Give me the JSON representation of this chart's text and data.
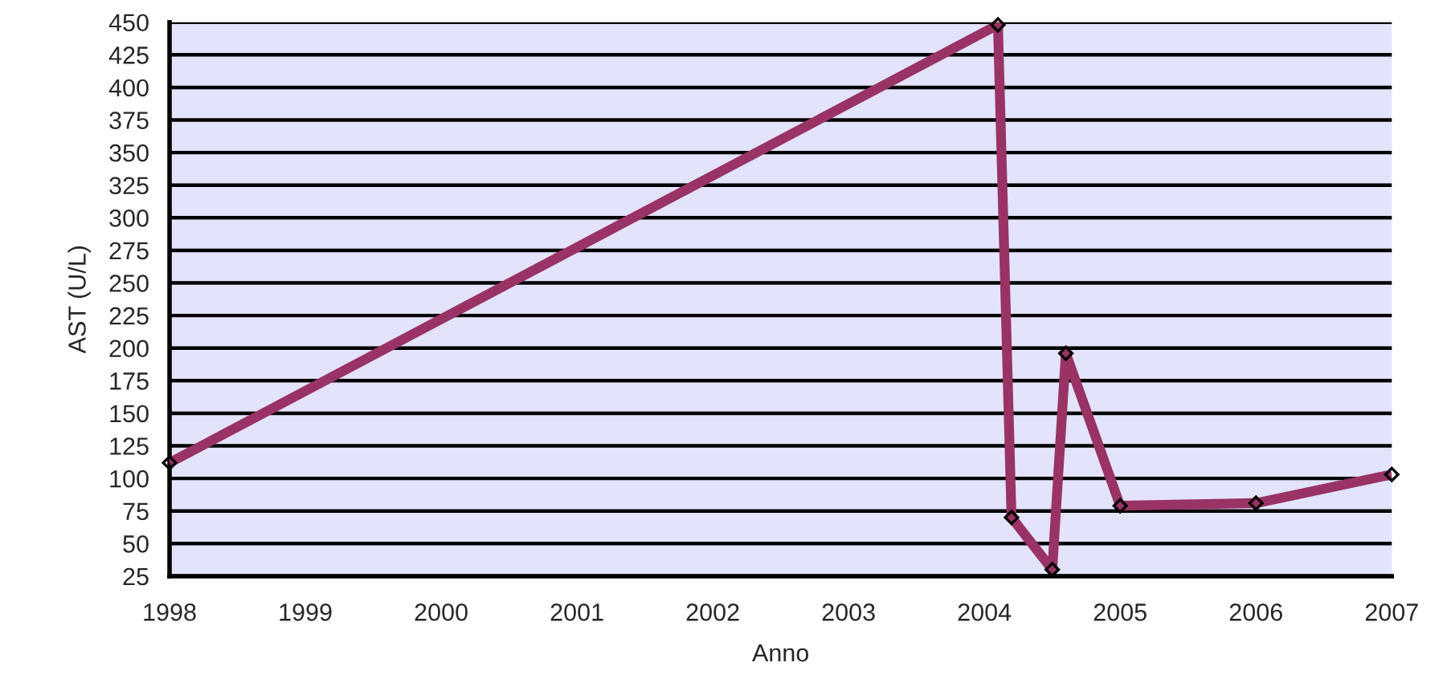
{
  "chart_data": {
    "type": "line",
    "xlabel": "Anno",
    "ylabel": "AST (U/L)",
    "x": [
      1998,
      2004.1,
      2004.2,
      2004.5,
      2004.6,
      2005,
      2006,
      2007
    ],
    "series": [
      {
        "color": "#993366",
        "values": [
          112,
          448,
          70,
          30,
          196,
          79,
          81,
          103
        ]
      }
    ],
    "xlim": [
      1998,
      2007
    ],
    "xticks": [
      1998,
      1999,
      2000,
      2001,
      2002,
      2003,
      2004,
      2005,
      2006,
      2007
    ],
    "ylim": [
      25,
      450
    ],
    "yticks": [
      25,
      50,
      75,
      100,
      125,
      150,
      175,
      200,
      225,
      250,
      275,
      300,
      325,
      350,
      375,
      400,
      425,
      450
    ],
    "grid": "y",
    "marker": "diamond",
    "line_style": "solid"
  }
}
